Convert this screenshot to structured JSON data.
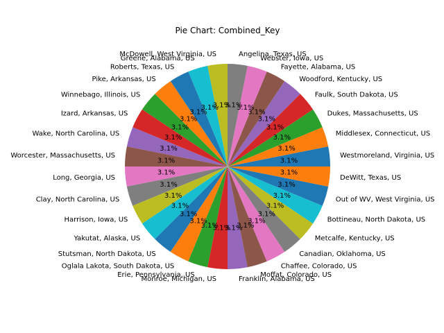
{
  "chart_data": {
    "type": "pie",
    "title": "Pie Chart: Combined_Key",
    "slice_percent_label": "3.1%",
    "palette": [
      "#1f77b4",
      "#ff7f0e",
      "#2ca02c",
      "#d62728",
      "#9467bd",
      "#8c564b",
      "#e377c2",
      "#7f7f7f",
      "#bcbd22",
      "#17becf"
    ],
    "slices": [
      {
        "label": "Westmoreland, Virginia, US",
        "value": 1
      },
      {
        "label": "Middlesex, Connecticut, US",
        "value": 1
      },
      {
        "label": "Dukes, Massachusetts, US",
        "value": 1
      },
      {
        "label": "Faulk, South Dakota, US",
        "value": 1
      },
      {
        "label": "Woodford, Kentucky, US",
        "value": 1
      },
      {
        "label": "Fayette, Alabama, US",
        "value": 1
      },
      {
        "label": "Webster, Iowa, US",
        "value": 1
      },
      {
        "label": "Angelina, Texas, US",
        "value": 1
      },
      {
        "label": "McDowell, West Virginia, US",
        "value": 1
      },
      {
        "label": "Greene, Alabama, US",
        "value": 1
      },
      {
        "label": "Roberts, Texas, US",
        "value": 1
      },
      {
        "label": "Pike, Arkansas, US",
        "value": 1
      },
      {
        "label": "Winnebago, Illinois, US",
        "value": 1
      },
      {
        "label": "Izard, Arkansas, US",
        "value": 1
      },
      {
        "label": "Wake, North Carolina, US",
        "value": 1
      },
      {
        "label": "Worcester, Massachusetts, US",
        "value": 1
      },
      {
        "label": "Long, Georgia, US",
        "value": 1
      },
      {
        "label": "Clay, North Carolina, US",
        "value": 1
      },
      {
        "label": "Harrison, Iowa, US",
        "value": 1
      },
      {
        "label": "Yakutat, Alaska, US",
        "value": 1
      },
      {
        "label": "Stutsman, North Dakota, US",
        "value": 1
      },
      {
        "label": "Oglala Lakota, South Dakota, US",
        "value": 1
      },
      {
        "label": "Erie, Pennsylvania, US",
        "value": 1
      },
      {
        "label": "Monroe, Michigan, US",
        "value": 1
      },
      {
        "label": "Franklin, Alabama, US",
        "value": 1
      },
      {
        "label": "Moffat, Colorado, US",
        "value": 1
      },
      {
        "label": "Chaffee, Colorado, US",
        "value": 1
      },
      {
        "label": "Canadian, Oklahoma, US",
        "value": 1
      },
      {
        "label": "Metcalfe, Kentucky, US",
        "value": 1
      },
      {
        "label": "Bottineau, North Dakota, US",
        "value": 1
      },
      {
        "label": "Out of WV, West Virginia, US",
        "value": 1
      },
      {
        "label": "DeWitt, Texas, US",
        "value": 1
      }
    ]
  }
}
